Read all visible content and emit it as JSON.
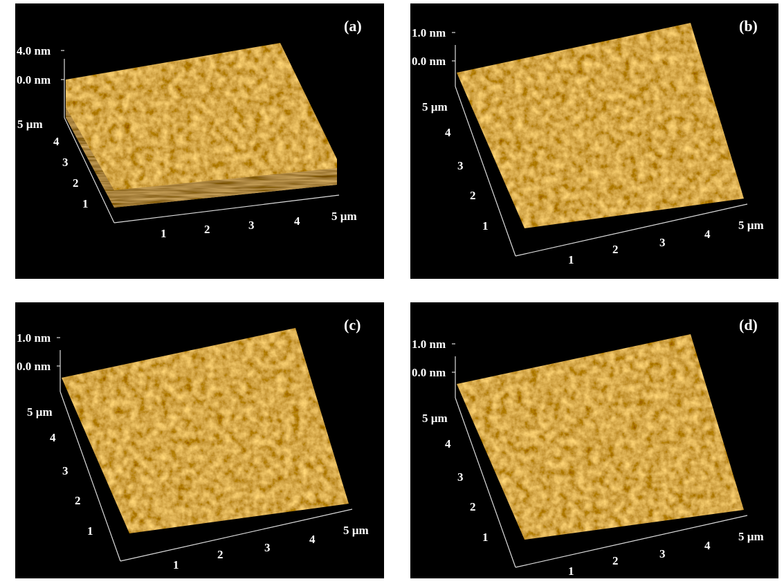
{
  "panels": [
    {
      "label": "(a)",
      "z_labels": [
        "4.0 nm",
        "0.0 nm"
      ],
      "y_ticks": [
        "5 µm",
        "4",
        "3",
        "2",
        "1"
      ],
      "x_ticks": [
        "1",
        "2",
        "3",
        "4",
        "5 µm"
      ]
    },
    {
      "label": "(b)",
      "z_labels": [
        "1.0 nm",
        "0.0 nm"
      ],
      "y_ticks": [
        "5 µm",
        "4",
        "3",
        "2",
        "1"
      ],
      "x_ticks": [
        "1",
        "2",
        "3",
        "4",
        "5 µm"
      ]
    },
    {
      "label": "(c)",
      "z_labels": [
        "1.0 nm",
        "0.0 nm"
      ],
      "y_ticks": [
        "5 µm",
        "4",
        "3",
        "2",
        "1"
      ],
      "x_ticks": [
        "1",
        "2",
        "3",
        "4",
        "5 µm"
      ]
    },
    {
      "label": "(d)",
      "z_labels": [
        "1.0 nm",
        "0.0 nm"
      ],
      "y_ticks": [
        "5 µm",
        "4",
        "3",
        "2",
        "1"
      ],
      "x_ticks": [
        "1",
        "2",
        "3",
        "4",
        "5 µm"
      ]
    }
  ]
}
